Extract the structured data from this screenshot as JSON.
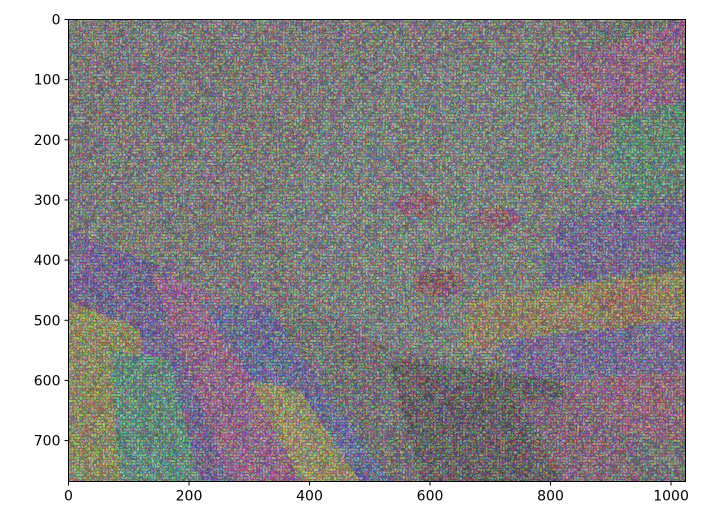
{
  "chart_data": {
    "type": "image",
    "xlim": [
      0,
      1024
    ],
    "ylim": [
      768,
      0
    ],
    "x_ticks": [
      {
        "value": 0,
        "label": "0"
      },
      {
        "value": 200,
        "label": "200"
      },
      {
        "value": 400,
        "label": "400"
      },
      {
        "value": 600,
        "label": "600"
      },
      {
        "value": 800,
        "label": "800"
      },
      {
        "value": 1000,
        "label": "1000"
      }
    ],
    "y_ticks": [
      {
        "value": 0,
        "label": "0"
      },
      {
        "value": 100,
        "label": "100"
      },
      {
        "value": 200,
        "label": "200"
      },
      {
        "value": 300,
        "label": "300"
      },
      {
        "value": 400,
        "label": "400"
      },
      {
        "value": 500,
        "label": "500"
      },
      {
        "value": 600,
        "label": "600"
      },
      {
        "value": 700,
        "label": "700"
      }
    ]
  }
}
